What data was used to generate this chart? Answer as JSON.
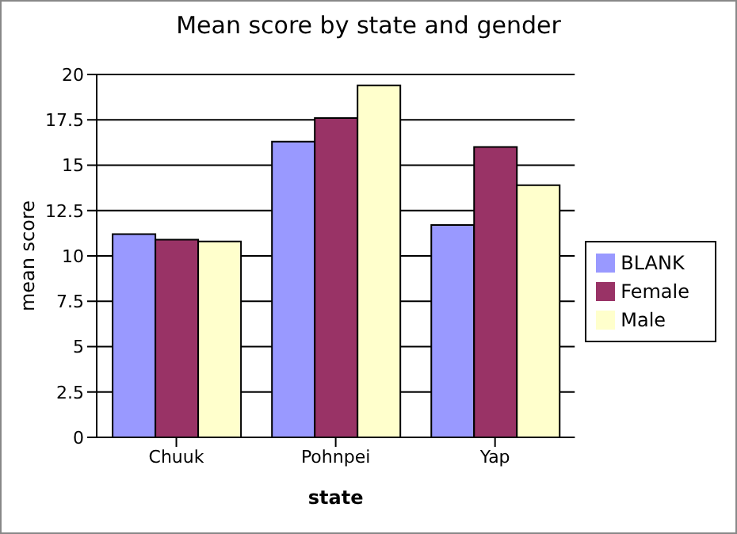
{
  "chart_data": {
    "type": "bar",
    "title": "Mean score by state and gender",
    "xlabel": "state",
    "ylabel": "mean score",
    "categories": [
      "Chuuk",
      "Pohnpei",
      "Yap"
    ],
    "series": [
      {
        "name": "BLANK",
        "color": "#9999ff",
        "values": [
          11.2,
          16.3,
          11.7
        ]
      },
      {
        "name": "Female",
        "color": "#993366",
        "values": [
          10.9,
          17.6,
          16.0
        ]
      },
      {
        "name": "Male",
        "color": "#ffffcc",
        "values": [
          10.8,
          19.4,
          13.9
        ]
      }
    ],
    "ylim": [
      0,
      20
    ],
    "yticks": [
      0,
      2.5,
      5,
      7.5,
      10,
      12.5,
      15,
      17.5,
      20
    ],
    "grid": "y",
    "legend": "right"
  }
}
